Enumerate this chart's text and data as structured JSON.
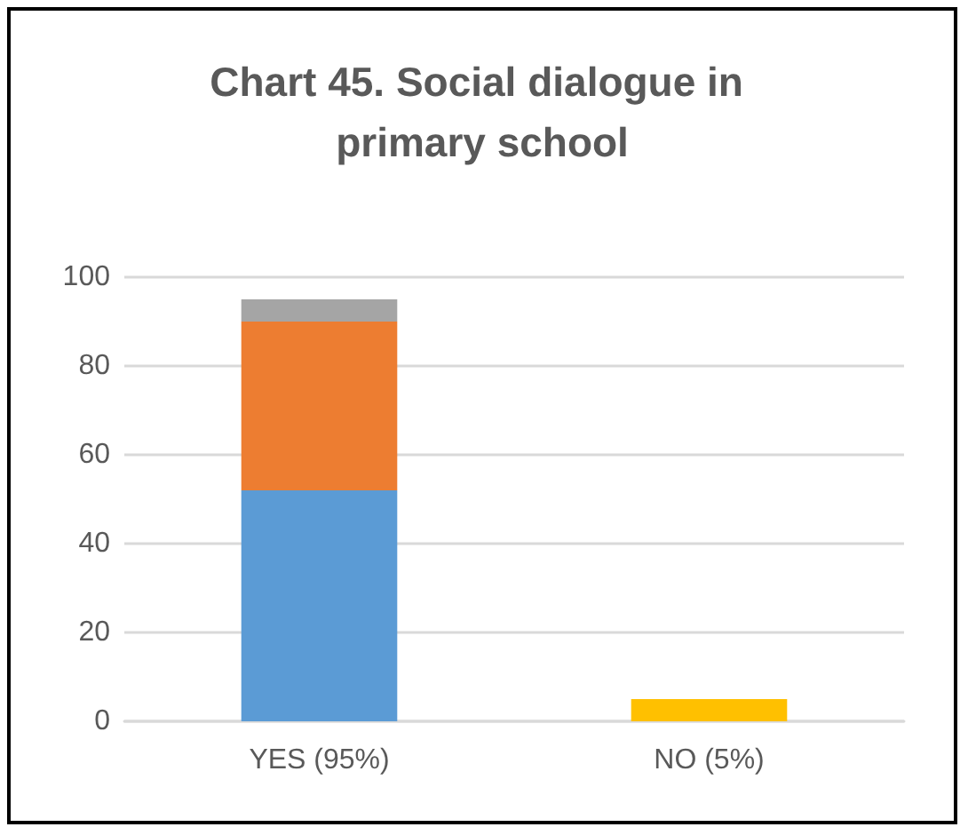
{
  "chart_data": {
    "type": "bar",
    "title": "Chart 45. Social dialogue in primary school",
    "categories": [
      "YES (95%)",
      "NO (5%)"
    ],
    "stacked": true,
    "series": [
      {
        "color": "#5b9bd5",
        "values": [
          52,
          null
        ]
      },
      {
        "color": "#ed7d31",
        "values": [
          38,
          null
        ]
      },
      {
        "color": "#a5a5a5",
        "values": [
          5,
          null
        ]
      },
      {
        "color": "#ffc000",
        "values": [
          null,
          5
        ]
      }
    ],
    "ylim": [
      0,
      100
    ],
    "yticks": [
      0,
      20,
      40,
      60,
      80,
      100
    ],
    "grid": "y"
  }
}
